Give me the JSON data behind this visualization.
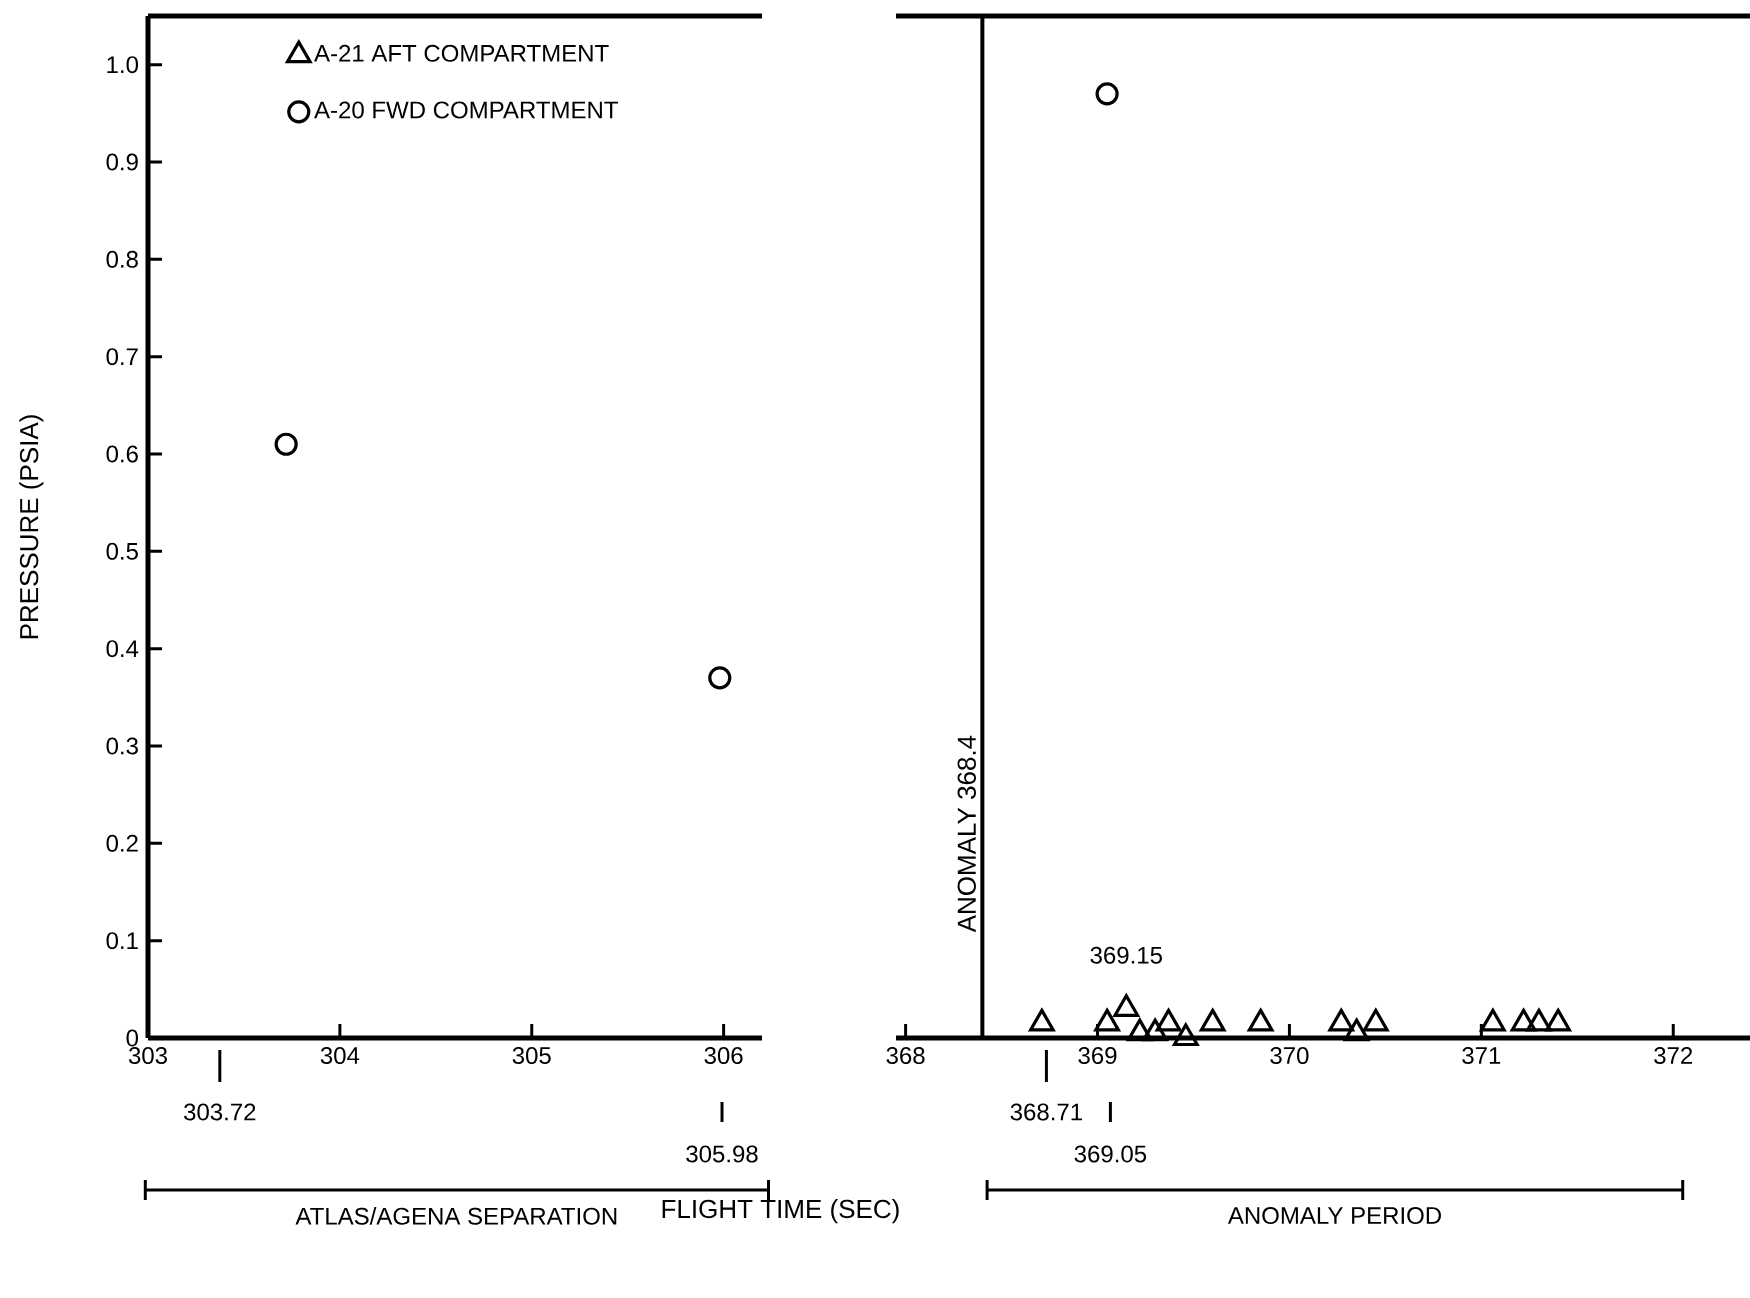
{
  "chart_data": [
    {
      "type": "scatter",
      "ylabel": "PRESSURE (PSIA)",
      "xlabel": "FLIGHT TIME (SEC)",
      "xlim": [
        303,
        306.2
      ],
      "xticks": [
        303,
        304,
        305,
        306
      ],
      "ylim": [
        0,
        1.05
      ],
      "yticks": [
        0,
        0.1,
        0.2,
        0.3,
        0.4,
        0.5,
        0.6,
        0.7,
        0.8,
        0.9,
        {
          "value": 1,
          "label": "1.0"
        }
      ],
      "legend": "top",
      "series": [
        {
          "name": "A-21 AFT COMPARTMENT",
          "color": "#000000",
          "marker": "triangle"
        },
        {
          "name": "A-20 FWD COMPARTMENT",
          "color": "#000000",
          "marker": "circle",
          "x": [
            303.72,
            305.98
          ],
          "values": [
            0.61,
            0.37
          ]
        }
      ],
      "annotations": [
        "303.72",
        "305.98",
        "ATLAS/AGENA SEPARATION"
      ]
    },
    {
      "type": "scatter",
      "tick_labels": "x",
      "xlim": [
        367.95,
        372.4
      ],
      "xticks": [
        368,
        369,
        370,
        371,
        372
      ],
      "ylim": [
        0,
        1.05
      ],
      "series": [
        {
          "color": "#000000",
          "marker": "triangle",
          "x": [
            368.71,
            369.05,
            369.15,
            369.22,
            369.3,
            369.37,
            369.46,
            369.6,
            369.85,
            370.27,
            370.35,
            370.45,
            371.06,
            371.22,
            371.3,
            371.4
          ],
          "values": [
            0.015,
            0.015,
            0.03,
            0.005,
            0.005,
            0.015,
            0,
            0.015,
            0.015,
            0.015,
            0.005,
            0.015,
            0.015,
            0.015,
            0.015,
            0.015
          ]
        },
        {
          "color": "#000000",
          "marker": "circle",
          "x": [
            369.05
          ],
          "values": [
            0.97
          ]
        }
      ],
      "annotations": [
        "368.71",
        "369.05",
        {
          "text": "369.15",
          "x": 369.15,
          "y": 0.03
        },
        "ANOMALY PERIOD"
      ],
      "ref_lines": [
        {
          "axis": "x",
          "value": 368.4,
          "label": "ANOMALY 368.4"
        }
      ]
    }
  ]
}
